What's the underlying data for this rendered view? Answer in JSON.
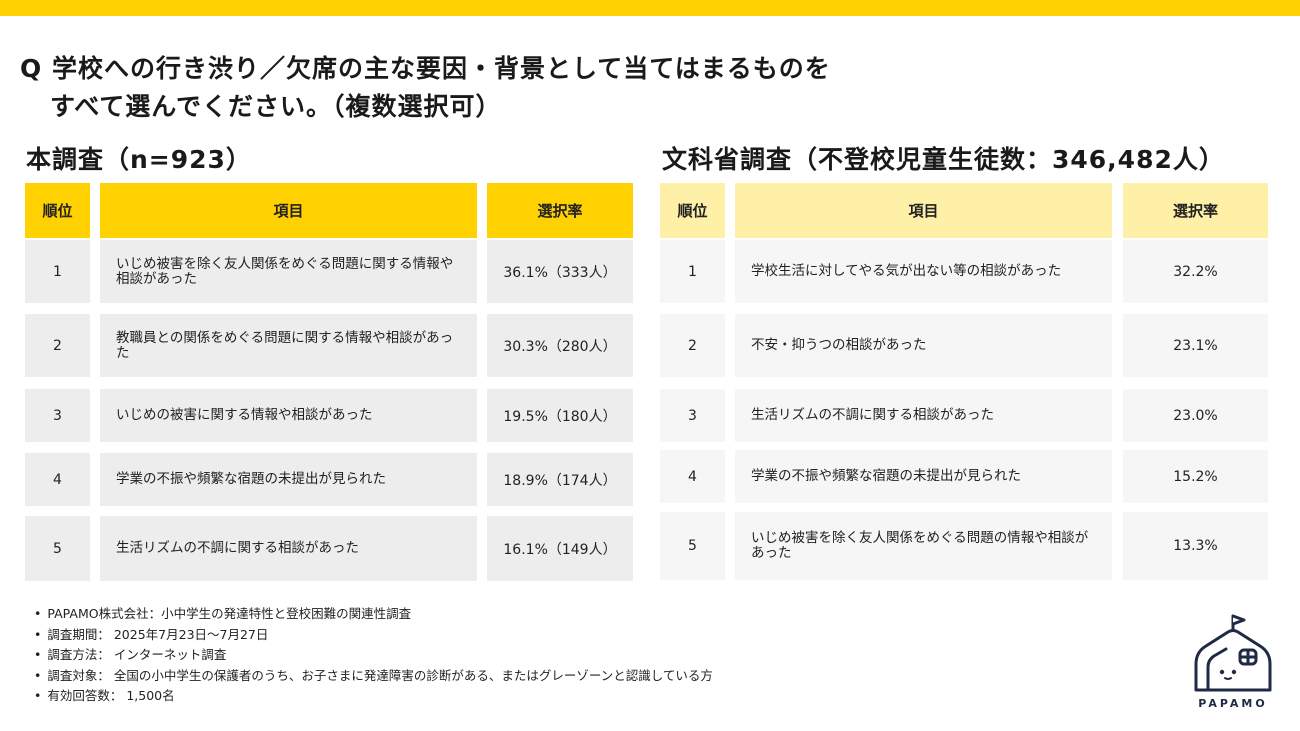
{
  "question": {
    "line1": "Q 学校への行き渋り／欠席の主な要因・背景として当てはまるものを",
    "line2": "すべて選んでください。（複数選択可）"
  },
  "left": {
    "title": "本調査（n=923）",
    "headers": {
      "rank": "順位",
      "item": "項目",
      "rate": "選択率"
    },
    "rows": [
      {
        "rank": "1",
        "item": "いじめ被害を除く友人関係をめぐる問題に関する情報や相談があった",
        "rate": "36.1%（333人）"
      },
      {
        "rank": "2",
        "item": "教職員との関係をめぐる問題に関する情報や相談があった",
        "rate": "30.3%（280人）"
      },
      {
        "rank": "3",
        "item": "いじめの被害に関する情報や相談があった",
        "rate": "19.5%（180人）"
      },
      {
        "rank": "4",
        "item": "学業の不振や頻繁な宿題の未提出が見られた",
        "rate": "18.9%（174人）"
      },
      {
        "rank": "5",
        "item": "生活リズムの不調に関する相談があった",
        "rate": "16.1%（149人）"
      }
    ]
  },
  "right": {
    "title": "文科省調査（不登校児童生徒数：346,482人）",
    "headers": {
      "rank": "順位",
      "item": "項目",
      "rate": "選択率"
    },
    "rows": [
      {
        "rank": "1",
        "item": "学校生活に対してやる気が出ない等の相談があった",
        "rate": "32.2%"
      },
      {
        "rank": "2",
        "item": "不安・抑うつの相談があった",
        "rate": "23.1%"
      },
      {
        "rank": "3",
        "item": "生活リズムの不調に関する相談があった",
        "rate": "23.0%"
      },
      {
        "rank": "4",
        "item": "学業の不振や頻繁な宿題の未提出が見られた",
        "rate": "15.2%"
      },
      {
        "rank": "5",
        "item": "いじめ被害を除く友人関係をめぐる問題の情報や相談があった",
        "rate": "13.3%"
      }
    ]
  },
  "footnotes": [
    "PAPAMO株式会社：小中学生の発達特性と登校困難の関連性調査",
    "調査期間： 2025年7月23日～7月27日",
    "調査方法： インターネット調査",
    "調査対象： 全国の小中学生の保護者のうち、お子さまに発達障害の診断がある、またはグレーゾーンと認識している方",
    "有効回答数： 1,500名"
  ],
  "logo": {
    "text": "PAPAMO"
  },
  "colors": {
    "accent": "#FFD100",
    "accent_light": "#FFF0A8",
    "row_gray": "#EDEDED",
    "row_light": "#F6F6F6",
    "logo_navy": "#1f2a44"
  }
}
